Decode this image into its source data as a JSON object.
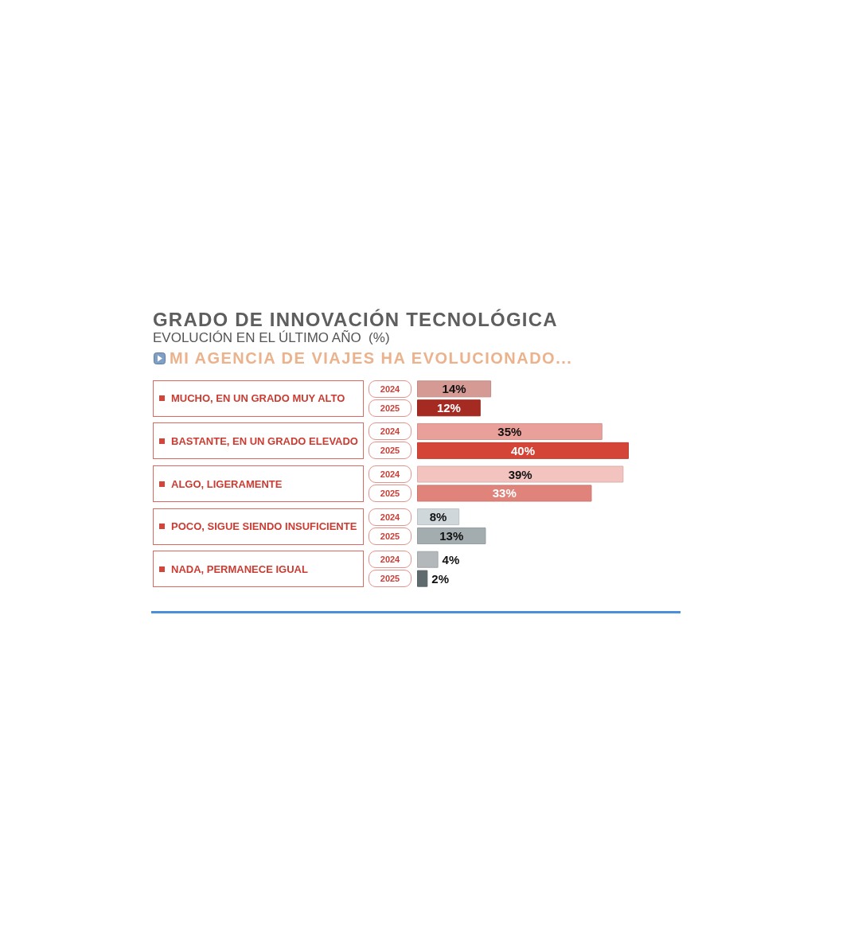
{
  "chart_data": {
    "type": "bar",
    "orientation": "horizontal",
    "title": "GRADO DE INNOVACIÓN TECNOLÓGICA",
    "subtitle": "EVOLUCIÓN EN EL ÚLTIMO AÑO  (%)",
    "annotations": [
      "MI AGENCIA DE VIAJES HA EVOLUCIONADO..."
    ],
    "categories": [
      "MUCHO, EN UN GRADO MUY ALTO",
      "BASTANTE, EN UN GRADO ELEVADO",
      "ALGO, LIGERAMENTE",
      "POCO, SIGUE SIENDO INSUFICIENTE",
      "NADA, PERMANECE IGUAL"
    ],
    "series": [
      {
        "name": "2024",
        "colors": [
          "#d69a95",
          "#e9a09a",
          "#f2c3bf",
          "#d0d7da",
          "#b3b8ba"
        ],
        "values": [
          14,
          35,
          39,
          8,
          4
        ],
        "value_labels": [
          "14%",
          "35%",
          "39%",
          "8%",
          "4%"
        ]
      },
      {
        "name": "2025",
        "colors": [
          "#a52b22",
          "#d44538",
          "#df837b",
          "#a3adb0",
          "#5f6a6e"
        ],
        "values": [
          12,
          40,
          33,
          13,
          2
        ],
        "value_labels": [
          "12%",
          "40%",
          "33%",
          "13%",
          "2%"
        ]
      }
    ],
    "legend": "left",
    "tick_labels": "y"
  }
}
